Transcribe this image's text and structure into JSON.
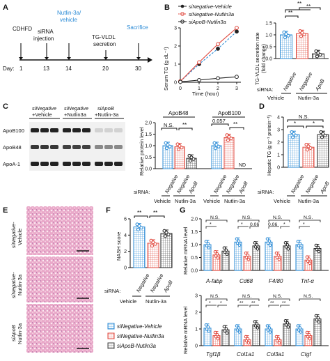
{
  "colors": {
    "blue": "#2b8bd6",
    "red": "#e0473c",
    "black": "#222222",
    "vehicle_label": "#2b8bd6",
    "nutlin_label": "#2b8bd6"
  },
  "panels": {
    "A": "A",
    "B": "B",
    "C": "C",
    "D": "D",
    "E": "E",
    "F": "F",
    "G": "G"
  },
  "panelA": {
    "diet": "CDHFD",
    "sirna": "siRNA",
    "injection": "injection",
    "nutlin": "Nutlin-3a/",
    "vehicle": "vehicle",
    "tgvldl": "TG-VLDL",
    "secretion": "secretion",
    "sacrifice": "Sacrifice",
    "day": "Day:",
    "days": [
      "1",
      "13",
      "14",
      "20",
      "30"
    ]
  },
  "panelB": {
    "legend": [
      "siNegative-Vehicle",
      "siNegative-Nutlin3a",
      "siApoB-Nutlin3a"
    ],
    "ylabel": "Serum TG (g dL⁻¹)",
    "xlabel": "Time (hour)",
    "yticks": [
      "0",
      "1",
      "2",
      "3"
    ],
    "xticks": [
      "0",
      "1",
      "2",
      "3"
    ],
    "ylabel2": "TG-VLDL secretion rate",
    "ylabel2b": "(fold change)",
    "yticks2": [
      "0.0",
      "0.5",
      "1.0",
      "1.5"
    ],
    "sig": [
      "**",
      "**",
      "**"
    ],
    "sirna": "siRNA:",
    "cats": [
      "Negative",
      "Negative",
      "ApoB"
    ],
    "grp": [
      "Vehicle",
      "Nutlin-3a"
    ]
  },
  "panelC": {
    "header": [
      [
        "siNegative",
        "+Vehicle"
      ],
      [
        "siNegative",
        "+Nutlin3a"
      ],
      [
        "siApoB",
        "+Nutlin-3a"
      ]
    ],
    "bands": [
      "ApoB100",
      "ApoB48",
      "ApoA-1"
    ],
    "titles": [
      "ApoB48",
      "ApoB100"
    ],
    "ylabel": "Relative protein level",
    "yticks": [
      "0.0",
      "0.5",
      "1.0",
      "1.5",
      "2.0"
    ],
    "ns": "N.S.",
    "p": "0.057",
    "star": "**",
    "nd": "ND",
    "sirna": "siRNA:",
    "cats": [
      "Negative",
      "Negative",
      "ApoB"
    ],
    "grp": [
      "Vehicle",
      "Nutlin-3a"
    ]
  },
  "panelD": {
    "ylabel": "Hepatic TG (g g⁻¹ protein⁻¹)",
    "yticks": [
      "0",
      "1",
      "2",
      "3",
      "4"
    ],
    "ns": "N.S.",
    "star": "*",
    "sirna": "siRNA:",
    "cats": [
      "Negative",
      "Negative",
      "ApoB"
    ],
    "grp": [
      "Vehicle",
      "Nutlin-3a"
    ]
  },
  "panelE": {
    "rows": [
      [
        "siNegative-",
        "Vehicle"
      ],
      [
        "siNegative-",
        "Nutlin-3a"
      ],
      [
        "siApoB",
        "Nutlin-3a"
      ]
    ]
  },
  "panelF": {
    "ylabel": "NASH score",
    "yticks": [
      "0",
      "2",
      "4",
      "6"
    ],
    "sig": [
      "**",
      "**"
    ],
    "sirna": "siRNA:",
    "cats": [
      "Negative",
      "Negative",
      "ApoB"
    ],
    "grp": [
      "Vehicle",
      "Nutlin-3a"
    ]
  },
  "panelG": {
    "ylabel": "Relative mRNA level",
    "ticks_top": [
      "0.0",
      "0.5",
      "1.0",
      "1.5",
      "2.0"
    ],
    "ticks_bot": [
      "0",
      "1",
      "2",
      "3"
    ],
    "genes_top": [
      "A-fabp",
      "Cd68",
      "F4/80",
      "Tnf-α"
    ],
    "genes_bot": [
      "Tgf1β",
      "Col1a1",
      "Col3a1",
      "Ctgf"
    ],
    "ns": "N.S.",
    "p06": "0.06",
    "star": "*",
    "dstar": "**"
  },
  "legend": [
    "siNegative-Vehicle",
    "siNegative-Nutlin3a",
    "siApoB-Nutlin3a"
  ],
  "chart_data": [
    {
      "type": "line",
      "title": "",
      "xlabel": "Time (hour)",
      "ylabel": "Serum TG (g dL-1)",
      "x": [
        0,
        1,
        2,
        3
      ],
      "ylim": [
        0,
        3
      ],
      "series": [
        {
          "name": "siNegative-Vehicle",
          "values": [
            0.05,
            1.0,
            1.85,
            2.8
          ]
        },
        {
          "name": "siNegative-Nutlin3a",
          "values": [
            0.05,
            1.1,
            2.1,
            3.0
          ]
        },
        {
          "name": "siApoB-Nutlin3a",
          "values": [
            0.02,
            0.12,
            0.22,
            0.3
          ]
        }
      ]
    },
    {
      "type": "bar",
      "ylabel": "TG-VLDL secretion rate (fold change)",
      "categories": [
        "Negative",
        "Negative",
        "ApoB"
      ],
      "values": [
        1.0,
        1.05,
        0.2
      ],
      "ylim": [
        0,
        1.5
      ]
    },
    {
      "type": "bar",
      "title": "ApoB48",
      "ylabel": "Relative protein level",
      "categories": [
        "Negative",
        "Negative",
        "ApoB"
      ],
      "values": [
        1.0,
        0.95,
        0.45
      ],
      "ylim": [
        0,
        2
      ]
    },
    {
      "type": "bar",
      "title": "ApoB100",
      "ylabel": "Relative protein level",
      "categories": [
        "Negative",
        "Negative",
        "ApoB"
      ],
      "values": [
        1.0,
        1.35,
        0
      ],
      "ylim": [
        0,
        2
      ]
    },
    {
      "type": "bar",
      "ylabel": "Hepatic TG",
      "categories": [
        "Negative",
        "Negative",
        "ApoB"
      ],
      "values": [
        2.6,
        1.6,
        2.6
      ],
      "ylim": [
        0,
        4
      ]
    },
    {
      "type": "bar",
      "ylabel": "NASH score",
      "categories": [
        "Negative",
        "Negative",
        "ApoB"
      ],
      "values": [
        5.0,
        3.0,
        4.2
      ],
      "ylim": [
        0,
        6
      ]
    },
    {
      "type": "bar",
      "ylabel": "Relative mRNA level",
      "categories": [
        "A-fabp",
        "Cd68",
        "F4/80",
        "Tnf-α"
      ],
      "series": [
        {
          "name": "siNegative-Vehicle",
          "values": [
            1.0,
            1.1,
            1.1,
            1.0
          ]
        },
        {
          "name": "siNegative-Nutlin3a",
          "values": [
            0.6,
            0.55,
            0.55,
            0.4
          ]
        },
        {
          "name": "siApoB-Nutlin3a",
          "values": [
            0.75,
            0.95,
            0.95,
            0.85
          ]
        }
      ],
      "ylim": [
        0,
        2
      ]
    },
    {
      "type": "bar",
      "ylabel": "Relative mRNA level",
      "categories": [
        "Tgf1β",
        "Col1a1",
        "Col3a1",
        "Ctgf"
      ],
      "series": [
        {
          "name": "siNegative-Vehicle",
          "values": [
            1.05,
            1.0,
            1.0,
            1.0
          ]
        },
        {
          "name": "siNegative-Nutlin3a",
          "values": [
            0.6,
            0.35,
            0.35,
            0.6
          ]
        },
        {
          "name": "siApoB-Nutlin3a",
          "values": [
            0.95,
            1.25,
            1.3,
            1.6
          ]
        }
      ],
      "ylim": [
        0,
        3
      ]
    }
  ]
}
